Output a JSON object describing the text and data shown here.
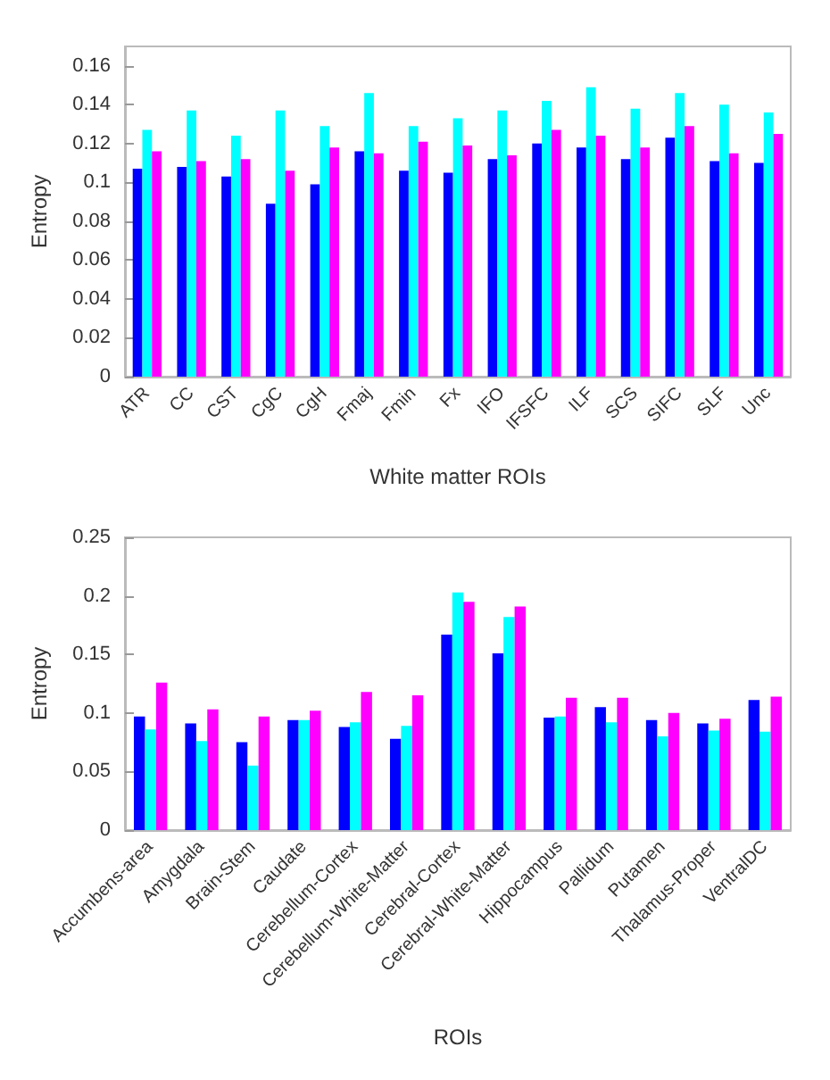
{
  "chart_data": [
    {
      "type": "bar",
      "xlabel": "White matter ROIs",
      "ylabel": "Entropy",
      "categories": [
        "ATR",
        "CC",
        "CST",
        "CgC",
        "CgH",
        "Fmaj",
        "Fmin",
        "Fx",
        "IFO",
        "IFSFC",
        "ILF",
        "SCS",
        "SIFC",
        "SLF",
        "Unc"
      ],
      "series": [
        {
          "color": "#0000ff",
          "values": [
            0.107,
            0.108,
            0.103,
            0.089,
            0.099,
            0.116,
            0.106,
            0.105,
            0.112,
            0.12,
            0.118,
            0.112,
            0.123,
            0.111,
            0.11
          ]
        },
        {
          "color": "#00ffff",
          "values": [
            0.127,
            0.137,
            0.124,
            0.137,
            0.129,
            0.146,
            0.129,
            0.133,
            0.137,
            0.142,
            0.149,
            0.138,
            0.146,
            0.14,
            0.136
          ]
        },
        {
          "color": "#ff00ff",
          "values": [
            0.116,
            0.111,
            0.112,
            0.106,
            0.118,
            0.115,
            0.121,
            0.119,
            0.114,
            0.127,
            0.124,
            0.118,
            0.129,
            0.115,
            0.125
          ]
        }
      ],
      "ylim": [
        0,
        0.17
      ],
      "yticks": [
        0,
        0.02,
        0.04,
        0.06,
        0.08,
        0.1,
        0.12,
        0.14,
        0.16
      ],
      "grid": false
    },
    {
      "type": "bar",
      "xlabel": "ROIs",
      "ylabel": "Entropy",
      "categories": [
        "Accumbens-area",
        "Amygdala",
        "Brain-Stem",
        "Caudate",
        "Cerebellum-Cortex",
        "Cerebellum-White-Matter",
        "Cerebral-Cortex",
        "Cerebral-White-Matter",
        "Hippocampus",
        "Pallidum",
        "Putamen",
        "Thalamus-Proper",
        "VentralDC"
      ],
      "series": [
        {
          "color": "#0000ff",
          "values": [
            0.097,
            0.091,
            0.075,
            0.094,
            0.088,
            0.078,
            0.167,
            0.151,
            0.096,
            0.105,
            0.094,
            0.091,
            0.111
          ]
        },
        {
          "color": "#00ffff",
          "values": [
            0.086,
            0.076,
            0.055,
            0.094,
            0.092,
            0.089,
            0.203,
            0.182,
            0.097,
            0.092,
            0.08,
            0.085,
            0.084
          ]
        },
        {
          "color": "#ff00ff",
          "values": [
            0.126,
            0.103,
            0.097,
            0.102,
            0.118,
            0.115,
            0.195,
            0.191,
            0.113,
            0.113,
            0.1,
            0.095,
            0.114
          ]
        }
      ],
      "ylim": [
        0,
        0.25
      ],
      "yticks": [
        0,
        0.05,
        0.1,
        0.15,
        0.2,
        0.25
      ],
      "grid": false
    }
  ]
}
